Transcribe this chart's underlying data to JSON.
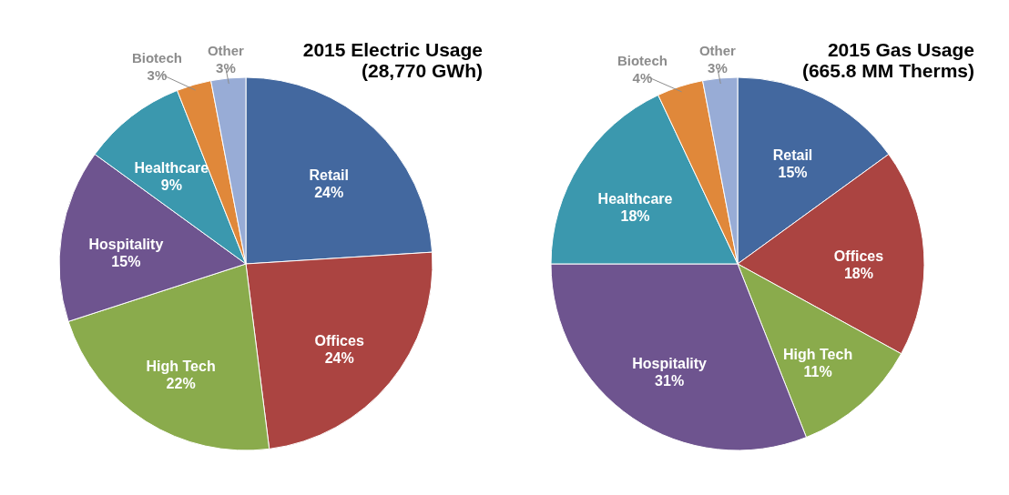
{
  "chart_data": [
    {
      "type": "pie",
      "title": [
        "2015 Electric Usage",
        "(28,770 GWh)"
      ],
      "categories": [
        "Retail",
        "Offices",
        "High Tech",
        "Hospitality",
        "Healthcare",
        "Biotech",
        "Other"
      ],
      "values": [
        24,
        24,
        22,
        15,
        9,
        3,
        3
      ],
      "value_labels": [
        "24%",
        "24%",
        "22%",
        "15%",
        "9%",
        "3%",
        "3%"
      ],
      "colors": [
        "#43689f",
        "#ab4441",
        "#8aab4c",
        "#6e548f",
        "#3b98ae",
        "#e0883a",
        "#98acd6"
      ],
      "legend": false
    },
    {
      "type": "pie",
      "title": [
        "2015 Gas Usage",
        "(665.8 MM Therms)"
      ],
      "categories": [
        "Retail",
        "Offices",
        "High Tech",
        "Hospitality",
        "Healthcare",
        "Biotech",
        "Other"
      ],
      "values": [
        15,
        18,
        11,
        31,
        18,
        4,
        3
      ],
      "value_labels": [
        "15%",
        "18%",
        "11%",
        "31%",
        "18%",
        "4%",
        "3%"
      ],
      "colors": [
        "#43689f",
        "#ab4441",
        "#8aab4c",
        "#6e548f",
        "#3b98ae",
        "#e0883a",
        "#98acd6"
      ],
      "legend": false
    }
  ]
}
